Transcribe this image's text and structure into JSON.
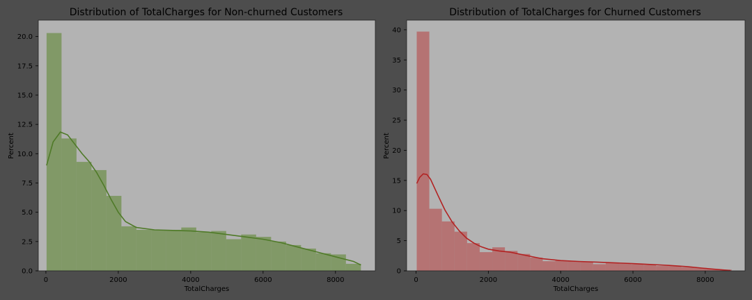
{
  "chart_data": [
    {
      "type": "bar",
      "title": "Distribution of TotalCharges for Non-churned Customers",
      "xlabel": "TotalCharges",
      "ylabel": "Percent",
      "xlim": [
        -210,
        9100
      ],
      "ylim": [
        0,
        21.4
      ],
      "xticks": [
        0,
        2000,
        4000,
        6000,
        8000
      ],
      "xtick_labels": [
        "0",
        "2000",
        "4000",
        "6000",
        "8000"
      ],
      "yticks": [
        0,
        2.5,
        5,
        7.5,
        10,
        12.5,
        15,
        17.5,
        20
      ],
      "ytick_labels": [
        "0.0",
        "2.5",
        "5.0",
        "7.5",
        "10.0",
        "12.5",
        "15.0",
        "17.5",
        "20.0"
      ],
      "bar_color": "#6e8f4a",
      "kde_color": "#4f7a28",
      "grid": false,
      "bins": [
        {
          "x0": 18.8,
          "x1": 432.3,
          "value": 20.3
        },
        {
          "x0": 432.3,
          "x1": 845.8,
          "value": 11.3
        },
        {
          "x0": 845.8,
          "x1": 1259.3,
          "value": 9.3
        },
        {
          "x0": 1259.3,
          "x1": 1672.8,
          "value": 8.6
        },
        {
          "x0": 1672.8,
          "x1": 2086.3,
          "value": 6.4
        },
        {
          "x0": 2086.3,
          "x1": 2499.8,
          "value": 3.8
        },
        {
          "x0": 2499.8,
          "x1": 2913.3,
          "value": 3.5
        },
        {
          "x0": 2913.3,
          "x1": 3326.8,
          "value": 3.5
        },
        {
          "x0": 3326.8,
          "x1": 3740.3,
          "value": 3.5
        },
        {
          "x0": 3740.3,
          "x1": 4153.8,
          "value": 3.7
        },
        {
          "x0": 4153.8,
          "x1": 4567.3,
          "value": 3.3
        },
        {
          "x0": 4567.3,
          "x1": 4980.8,
          "value": 3.4
        },
        {
          "x0": 4980.8,
          "x1": 5394.3,
          "value": 2.7
        },
        {
          "x0": 5394.3,
          "x1": 5807.8,
          "value": 3.1
        },
        {
          "x0": 5807.8,
          "x1": 6221.3,
          "value": 2.9
        },
        {
          "x0": 6221.3,
          "x1": 6634.8,
          "value": 2.5
        },
        {
          "x0": 6634.8,
          "x1": 7048.3,
          "value": 2.2
        },
        {
          "x0": 7048.3,
          "x1": 7461.8,
          "value": 1.9
        },
        {
          "x0": 7461.8,
          "x1": 7875.3,
          "value": 1.5
        },
        {
          "x0": 7875.3,
          "x1": 8288.8,
          "value": 1.4
        },
        {
          "x0": 8288.8,
          "x1": 8702.3,
          "value": 0.6
        }
      ],
      "kde": {
        "x": [
          18.8,
          200,
          400,
          600,
          800,
          1000,
          1200,
          1400,
          1600,
          1800,
          2000,
          2200,
          2500,
          3000,
          3500,
          4000,
          4500,
          5000,
          5500,
          6000,
          6500,
          7000,
          7500,
          8000,
          8500,
          8702
        ],
        "y": [
          9.0,
          11.0,
          11.85,
          11.6,
          10.8,
          10.0,
          9.3,
          8.4,
          7.3,
          6.1,
          5.0,
          4.2,
          3.7,
          3.5,
          3.45,
          3.4,
          3.3,
          3.1,
          2.9,
          2.7,
          2.4,
          2.0,
          1.6,
          1.2,
          0.8,
          0.5
        ]
      }
    },
    {
      "type": "bar",
      "title": "Distribution of TotalCharges for Churned Customers",
      "xlabel": "TotalCharges",
      "ylabel": "Percent",
      "xlim": [
        -260,
        9100
      ],
      "ylim": [
        0,
        41.6
      ],
      "xticks": [
        0,
        2000,
        4000,
        6000,
        8000
      ],
      "xtick_labels": [
        "0",
        "2000",
        "4000",
        "6000",
        "8000"
      ],
      "yticks": [
        0,
        5,
        10,
        15,
        20,
        25,
        30,
        35,
        40
      ],
      "ytick_labels": [
        "0",
        "5",
        "10",
        "15",
        "20",
        "25",
        "30",
        "35",
        "40"
      ],
      "bar_color": "#b55a5a",
      "kde_color": "#b22222",
      "grid": false,
      "bins": [
        {
          "x0": 18.9,
          "x1": 367.4,
          "value": 39.7
        },
        {
          "x0": 367.4,
          "x1": 715.9,
          "value": 10.3
        },
        {
          "x0": 715.9,
          "x1": 1064.4,
          "value": 8.2
        },
        {
          "x0": 1064.4,
          "x1": 1412.9,
          "value": 6.5
        },
        {
          "x0": 1412.9,
          "x1": 1761.4,
          "value": 4.6
        },
        {
          "x0": 1761.4,
          "x1": 2109.9,
          "value": 3.1
        },
        {
          "x0": 2109.9,
          "x1": 2458.4,
          "value": 3.9
        },
        {
          "x0": 2458.4,
          "x1": 2806.9,
          "value": 3.3
        },
        {
          "x0": 2806.9,
          "x1": 3155.4,
          "value": 2.8
        },
        {
          "x0": 3155.4,
          "x1": 3503.9,
          "value": 2.2
        },
        {
          "x0": 3503.9,
          "x1": 3852.4,
          "value": 1.6
        },
        {
          "x0": 3852.4,
          "x1": 4200.9,
          "value": 1.7
        },
        {
          "x0": 4200.9,
          "x1": 4549.4,
          "value": 1.6
        },
        {
          "x0": 4549.4,
          "x1": 4897.9,
          "value": 1.5
        },
        {
          "x0": 4897.9,
          "x1": 5246.4,
          "value": 1.1
        },
        {
          "x0": 5246.4,
          "x1": 5594.9,
          "value": 1.3
        },
        {
          "x0": 5594.9,
          "x1": 5943.4,
          "value": 1.2
        },
        {
          "x0": 5943.4,
          "x1": 6291.9,
          "value": 1.1
        },
        {
          "x0": 6291.9,
          "x1": 6640.4,
          "value": 1.0
        },
        {
          "x0": 6640.4,
          "x1": 6988.9,
          "value": 0.8
        },
        {
          "x0": 6988.9,
          "x1": 7337.4,
          "value": 0.8
        },
        {
          "x0": 7337.4,
          "x1": 7685.9,
          "value": 0.6
        },
        {
          "x0": 7685.9,
          "x1": 8034.4,
          "value": 0.5
        },
        {
          "x0": 8034.4,
          "x1": 8382.9,
          "value": 0.3
        },
        {
          "x0": 8382.9,
          "x1": 8731.4,
          "value": 0.2
        }
      ],
      "kde": {
        "x": [
          18.9,
          100,
          200,
          300,
          400,
          600,
          800,
          1000,
          1200,
          1400,
          1600,
          1800,
          2000,
          2300,
          2600,
          3000,
          3500,
          4000,
          4500,
          5000,
          6000,
          7000,
          7500,
          8000,
          8500,
          8700
        ],
        "y": [
          14.5,
          15.5,
          16.1,
          16.0,
          15.2,
          12.6,
          10.1,
          8.1,
          6.6,
          5.4,
          4.6,
          4.0,
          3.6,
          3.3,
          3.1,
          2.6,
          2.0,
          1.7,
          1.55,
          1.45,
          1.2,
          0.9,
          0.7,
          0.4,
          0.15,
          0.05
        ]
      }
    }
  ]
}
